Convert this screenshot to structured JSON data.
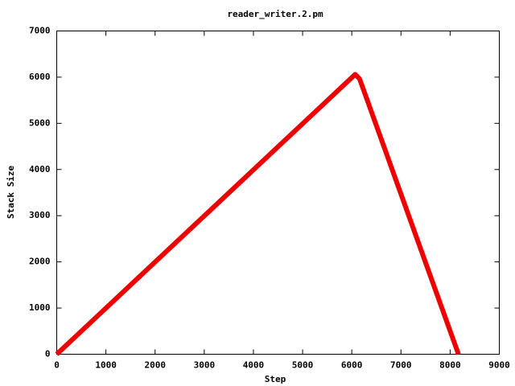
{
  "chart_data": {
    "type": "line",
    "title": "reader_writer.2.pm",
    "x_label": "Step",
    "y_label": "Stack Size",
    "x": [
      0,
      6070,
      6160,
      8170
    ],
    "series": [
      {
        "color": "#ee0000",
        "values": [
          0,
          6060,
          5960,
          0
        ]
      }
    ],
    "xlim": [
      0,
      9000
    ],
    "xticks": [
      0,
      1000,
      2000,
      3000,
      4000,
      5000,
      6000,
      7000,
      8000,
      9000
    ],
    "ylim": [
      0,
      7000
    ],
    "yticks": [
      0,
      1000,
      2000,
      3000,
      4000,
      5000,
      6000,
      7000
    ]
  }
}
